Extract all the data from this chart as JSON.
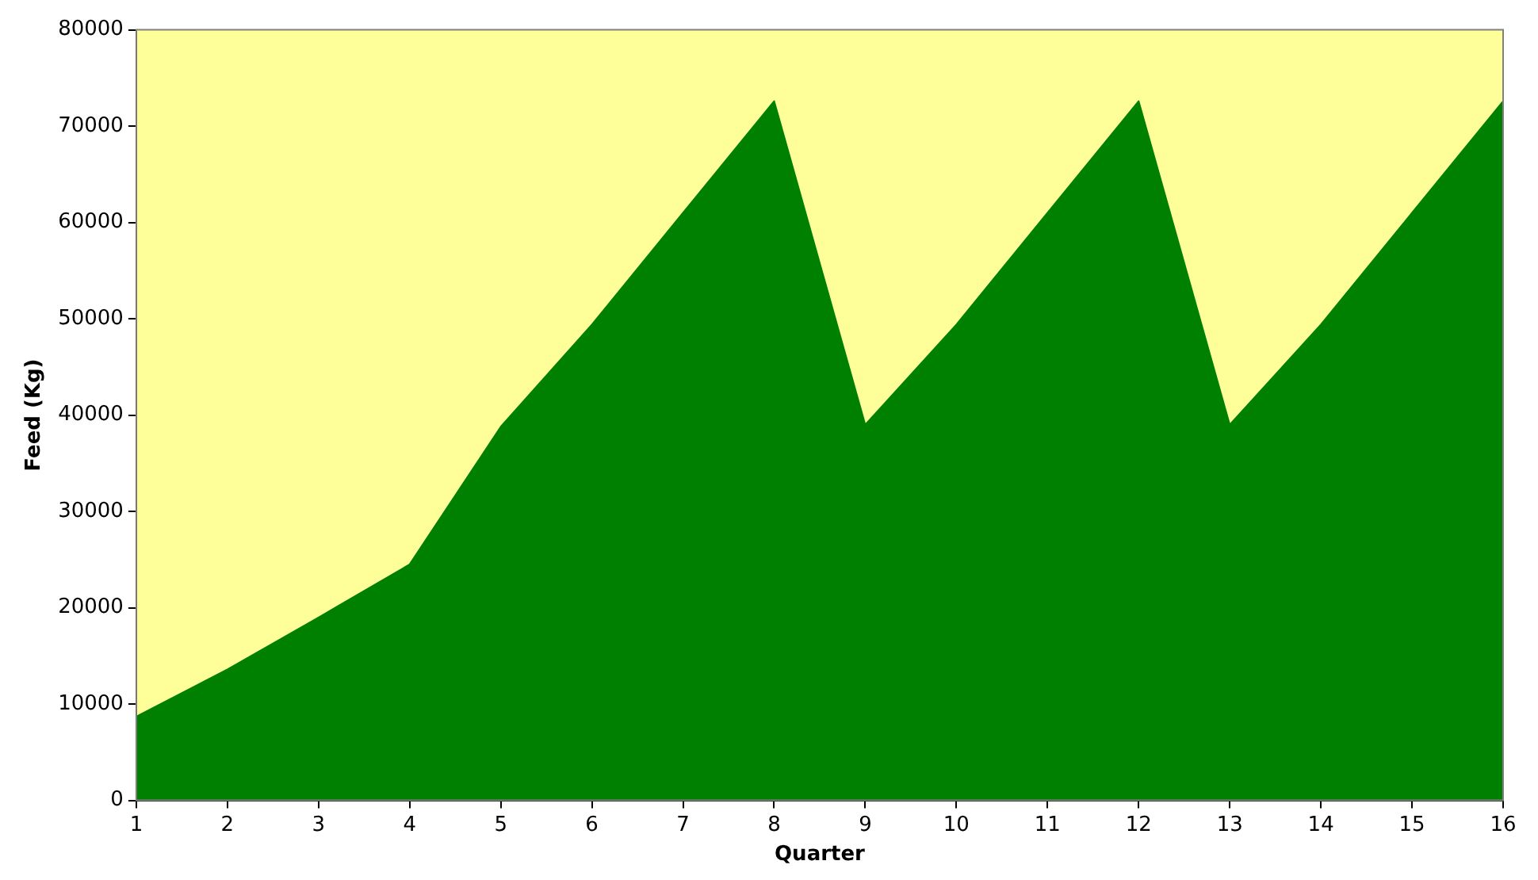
{
  "chart_data": {
    "type": "area",
    "xlabel": "Quarter",
    "ylabel": "Feed (Kg)",
    "x": [
      1,
      2,
      3,
      4,
      5,
      6,
      7,
      8,
      9,
      10,
      11,
      12,
      13,
      14,
      15,
      16
    ],
    "series": [
      {
        "color": "#008000",
        "values": [
          8700,
          13600,
          19000,
          24500,
          38800,
          49400,
          61000,
          72600,
          39000,
          49400,
          61000,
          72600,
          39000,
          49400,
          61000,
          72600
        ]
      }
    ],
    "xlim": [
      1,
      16
    ],
    "xticks": [
      1,
      2,
      3,
      4,
      5,
      6,
      7,
      8,
      9,
      10,
      11,
      12,
      13,
      14,
      15,
      16
    ],
    "ylim": [
      0,
      80000
    ],
    "yticks": [
      0,
      10000,
      20000,
      30000,
      40000,
      50000,
      60000,
      70000,
      80000
    ],
    "bands": [
      {
        "axis": "y",
        "from": 0,
        "to": 80000,
        "color": "#ffff99"
      }
    ],
    "grid": false,
    "legend": false
  }
}
